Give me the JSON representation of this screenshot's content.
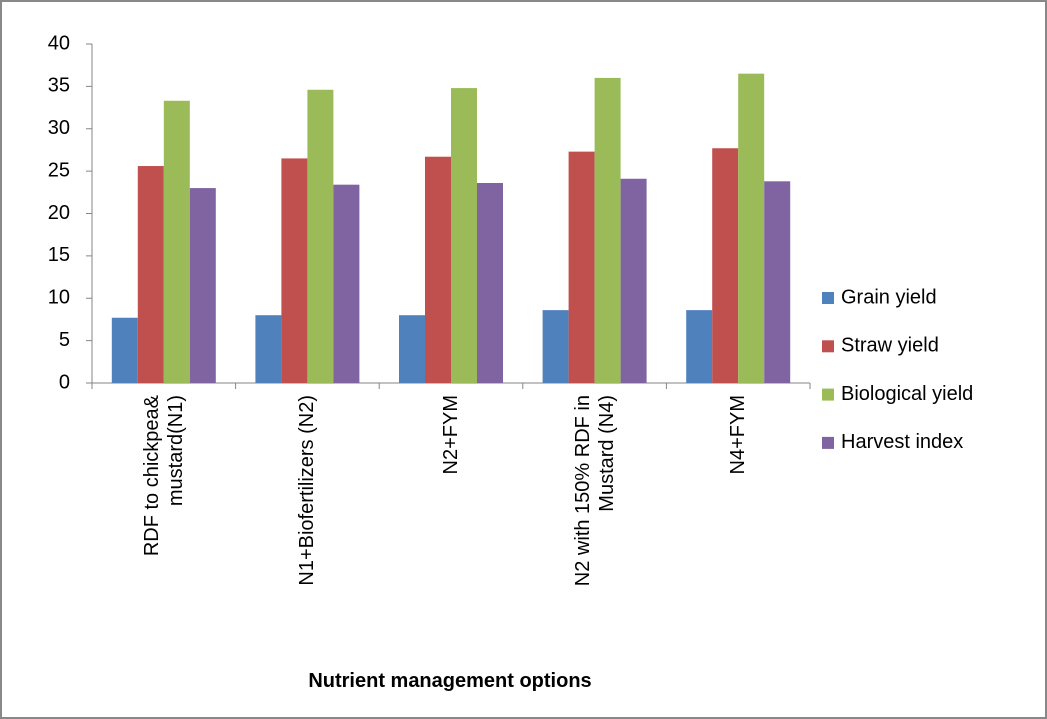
{
  "chart_data": {
    "type": "bar",
    "x_label": "Nutrient management options",
    "categories": [
      "RDF to chickpea& mustard(N1)",
      "N1+Biofertilizers (N2)",
      "N2+FYM",
      "N2 with 150% RDF in Mustard (N4)",
      "N4+FYM"
    ],
    "series": [
      {
        "name": "Grain yield",
        "color": "#4f81bd",
        "values": [
          7.7,
          8.0,
          8.0,
          8.6,
          8.6
        ]
      },
      {
        "name": "Straw yield",
        "color": "#c0504d",
        "values": [
          25.6,
          26.5,
          26.7,
          27.3,
          27.7
        ]
      },
      {
        "name": "Biological yield",
        "color": "#9bbb59",
        "values": [
          33.3,
          34.6,
          34.8,
          36.0,
          36.5
        ]
      },
      {
        "name": "Harvest index",
        "color": "#8064a2",
        "values": [
          23.0,
          23.4,
          23.6,
          24.1,
          23.8
        ]
      }
    ],
    "ylim": [
      0,
      40
    ],
    "yticks": [
      0,
      5,
      10,
      15,
      20,
      25,
      30,
      35,
      40
    ],
    "grid": false,
    "legend": "right"
  }
}
